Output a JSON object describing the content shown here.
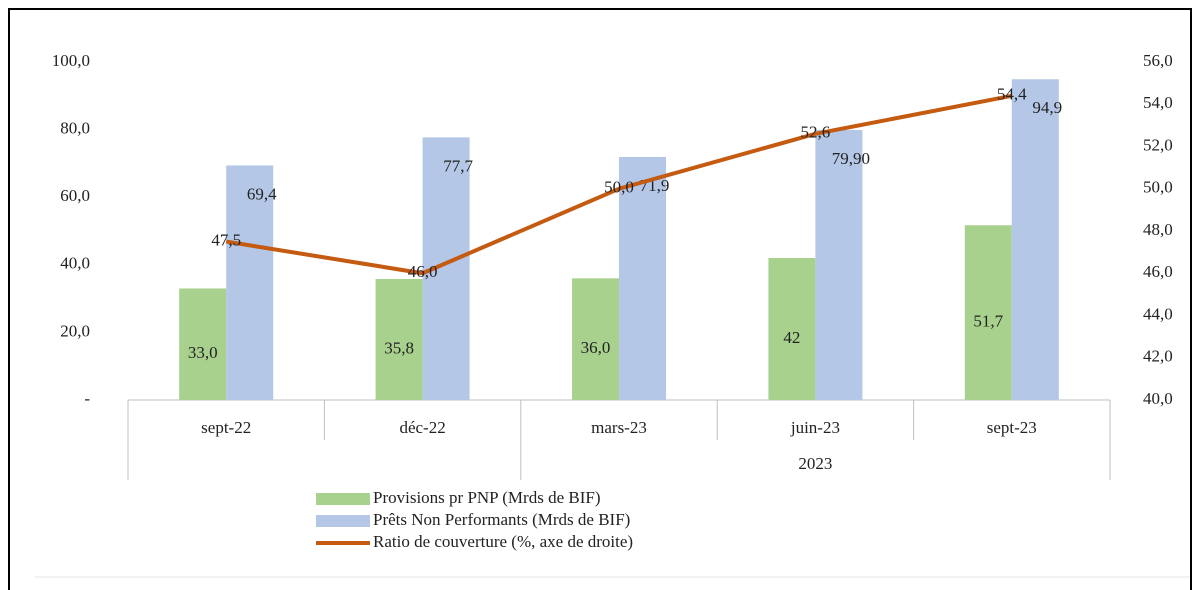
{
  "chart_data": {
    "type": "bar",
    "categories": [
      "sept-22",
      "déc-22",
      "mars-23",
      "juin-23",
      "sept-23"
    ],
    "category_groups": [
      {
        "label": "2023",
        "start": 2,
        "end": 4
      }
    ],
    "series": [
      {
        "name": "Provisions pr PNP (Mrds de BIF)",
        "type": "bar",
        "color": "#a9d18e",
        "values": [
          33.0,
          35.8,
          36.0,
          42,
          51.7
        ],
        "value_labels": [
          "33,0",
          "35,8",
          "36,0",
          "42",
          "51,7"
        ]
      },
      {
        "name": "Prêts Non Performants (Mrds de BIF)",
        "type": "bar",
        "color": "#b4c7e7",
        "values": [
          69.4,
          77.7,
          71.9,
          79.9,
          94.9
        ],
        "value_labels": [
          "69,4",
          "77,7",
          "71,9",
          "79,90",
          "94,9"
        ]
      },
      {
        "name": "Ratio de couverture (%, axe de droite)",
        "type": "line",
        "axis": "y2",
        "color": "#c55a11",
        "values": [
          47.5,
          46.0,
          50.0,
          52.6,
          54.4
        ],
        "value_labels": [
          "47,5",
          "46,0",
          "50,0",
          "52,6",
          "54,4"
        ]
      }
    ],
    "ylim": [
      0,
      100
    ],
    "yticks": [
      {
        "value": 0,
        "label": "-"
      },
      {
        "value": 20,
        "label": "20,0"
      },
      {
        "value": 40,
        "label": "40,0"
      },
      {
        "value": 60,
        "label": "60,0"
      },
      {
        "value": 80,
        "label": "80,0"
      },
      {
        "value": 100,
        "label": "100,0"
      }
    ],
    "y2lim": [
      40,
      56
    ],
    "y2ticks": [
      {
        "value": 40,
        "label": "40,0"
      },
      {
        "value": 42,
        "label": "42,0"
      },
      {
        "value": 44,
        "label": "44,0"
      },
      {
        "value": 46,
        "label": "46,0"
      },
      {
        "value": 48,
        "label": "48,0"
      },
      {
        "value": 50,
        "label": "50,0"
      },
      {
        "value": 52,
        "label": "52,0"
      },
      {
        "value": 54,
        "label": "54,0"
      },
      {
        "value": 56,
        "label": "56,0"
      }
    ],
    "grid": false
  }
}
